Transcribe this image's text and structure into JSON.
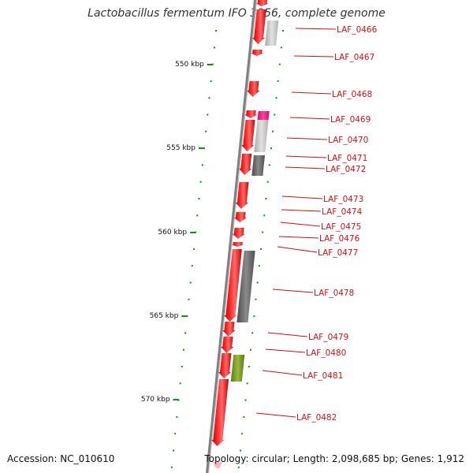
{
  "title": "Lactobacillus fermentum IFO 3956, complete genome",
  "footer": {
    "accession": "Accession: NC_010610",
    "topology": "Topology: circular; Length: 2,098,685 bp; Genes: 1,912"
  },
  "colors": {
    "forward_gene": "#ee1111",
    "feature_light": "#c8c8c8",
    "feature_dark": "#6a6a6a",
    "feature_magenta": "#ff1493",
    "feature_olive": "#7a9a2a",
    "tick": "#1a8a1a",
    "label": "#d0101a",
    "backbone": "#808080"
  },
  "scale_labels": [
    "550 kbp",
    "555 kbp",
    "560 kbp",
    "565 kbp",
    "570 kbp"
  ],
  "genes": [
    {
      "label": "LAF_0466"
    },
    {
      "label": "LAF_0467"
    },
    {
      "label": "LAF_0468"
    },
    {
      "label": "LAF_0469"
    },
    {
      "label": "LAF_0470"
    },
    {
      "label": "LAF_0471"
    },
    {
      "label": "LAF_0472"
    },
    {
      "label": "LAF_0473"
    },
    {
      "label": "LAF_0474"
    },
    {
      "label": "LAF_0475"
    },
    {
      "label": "LAF_0476"
    },
    {
      "label": "LAF_0477"
    },
    {
      "label": "LAF_0478"
    },
    {
      "label": "LAF_0479"
    },
    {
      "label": "LAF_0480"
    },
    {
      "label": "LAF_0481"
    },
    {
      "label": "LAF_0482"
    }
  ]
}
